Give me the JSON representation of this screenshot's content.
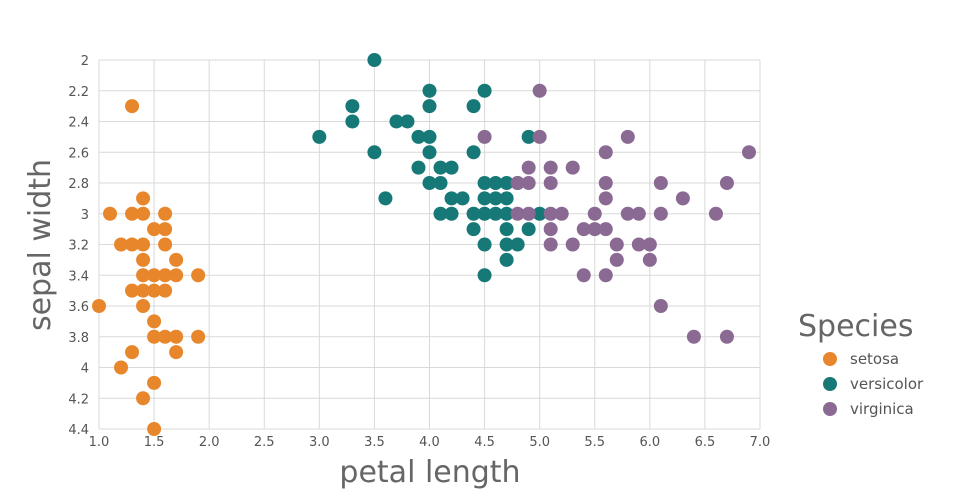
{
  "chart_data": {
    "type": "scatter",
    "title": "",
    "xlabel": "petal length",
    "ylabel": "sepal width",
    "xlim": [
      1.0,
      7.0
    ],
    "ylim": [
      2.0,
      4.4
    ],
    "y_inverted": true,
    "grid": true,
    "x_ticks": [
      "1.0",
      "1.5",
      "2.0",
      "2.5",
      "3.0",
      "3.5",
      "4.0",
      "4.5",
      "5.0",
      "5.5",
      "6.0",
      "6.5",
      "7.0"
    ],
    "y_ticks": [
      "2",
      "2.2",
      "2.4",
      "2.6",
      "2.8",
      "3",
      "3.2",
      "3.4",
      "3.6",
      "3.8",
      "4",
      "4.2",
      "4.4"
    ],
    "legend": {
      "title": "Species",
      "placement": "right"
    },
    "series": [
      {
        "name": "setosa",
        "color": "#e8862b",
        "points": [
          [
            1.3,
            2.3
          ],
          [
            1.1,
            3.0
          ],
          [
            1.3,
            3.0
          ],
          [
            1.4,
            3.0
          ],
          [
            1.6,
            3.0
          ],
          [
            1.4,
            2.9
          ],
          [
            1.2,
            3.2
          ],
          [
            1.3,
            3.2
          ],
          [
            1.4,
            3.2
          ],
          [
            1.6,
            3.2
          ],
          [
            1.5,
            3.1
          ],
          [
            1.6,
            3.1
          ],
          [
            1.4,
            3.3
          ],
          [
            1.7,
            3.3
          ],
          [
            1.4,
            3.4
          ],
          [
            1.5,
            3.4
          ],
          [
            1.6,
            3.4
          ],
          [
            1.7,
            3.4
          ],
          [
            1.9,
            3.4
          ],
          [
            1.3,
            3.5
          ],
          [
            1.4,
            3.5
          ],
          [
            1.5,
            3.5
          ],
          [
            1.6,
            3.5
          ],
          [
            1.0,
            3.6
          ],
          [
            1.4,
            3.6
          ],
          [
            1.5,
            3.7
          ],
          [
            1.5,
            3.8
          ],
          [
            1.6,
            3.8
          ],
          [
            1.7,
            3.8
          ],
          [
            1.9,
            3.8
          ],
          [
            1.3,
            3.9
          ],
          [
            1.7,
            3.9
          ],
          [
            1.2,
            4.0
          ],
          [
            1.5,
            4.1
          ],
          [
            1.4,
            4.2
          ],
          [
            1.5,
            4.4
          ]
        ]
      },
      {
        "name": "versicolor",
        "color": "#177878",
        "points": [
          [
            3.5,
            2.0
          ],
          [
            4.0,
            2.2
          ],
          [
            4.5,
            2.2
          ],
          [
            3.3,
            2.3
          ],
          [
            4.0,
            2.3
          ],
          [
            4.4,
            2.3
          ],
          [
            3.3,
            2.4
          ],
          [
            3.7,
            2.4
          ],
          [
            3.8,
            2.4
          ],
          [
            3.0,
            2.5
          ],
          [
            3.9,
            2.5
          ],
          [
            4.0,
            2.5
          ],
          [
            4.9,
            2.5
          ],
          [
            3.5,
            2.6
          ],
          [
            4.0,
            2.6
          ],
          [
            4.4,
            2.6
          ],
          [
            3.9,
            2.7
          ],
          [
            4.1,
            2.7
          ],
          [
            4.2,
            2.7
          ],
          [
            4.0,
            2.8
          ],
          [
            4.1,
            2.8
          ],
          [
            4.5,
            2.8
          ],
          [
            4.6,
            2.8
          ],
          [
            4.7,
            2.8
          ],
          [
            4.8,
            2.8
          ],
          [
            3.6,
            2.9
          ],
          [
            4.2,
            2.9
          ],
          [
            4.3,
            2.9
          ],
          [
            4.5,
            2.9
          ],
          [
            4.6,
            2.9
          ],
          [
            4.7,
            2.9
          ],
          [
            4.1,
            3.0
          ],
          [
            4.2,
            3.0
          ],
          [
            4.4,
            3.0
          ],
          [
            4.5,
            3.0
          ],
          [
            4.6,
            3.0
          ],
          [
            4.7,
            3.0
          ],
          [
            5.0,
            3.0
          ],
          [
            4.4,
            3.1
          ],
          [
            4.7,
            3.1
          ],
          [
            4.9,
            3.1
          ],
          [
            4.5,
            3.2
          ],
          [
            4.7,
            3.2
          ],
          [
            4.8,
            3.2
          ],
          [
            4.7,
            3.3
          ],
          [
            4.5,
            3.4
          ]
        ]
      },
      {
        "name": "virginica",
        "color": "#8a6a93",
        "points": [
          [
            5.0,
            2.2
          ],
          [
            4.5,
            2.5
          ],
          [
            5.0,
            2.5
          ],
          [
            5.8,
            2.5
          ],
          [
            5.6,
            2.6
          ],
          [
            6.9,
            2.6
          ],
          [
            4.9,
            2.7
          ],
          [
            5.1,
            2.7
          ],
          [
            5.3,
            2.7
          ],
          [
            4.8,
            2.8
          ],
          [
            4.9,
            2.8
          ],
          [
            5.1,
            2.8
          ],
          [
            5.6,
            2.8
          ],
          [
            6.1,
            2.8
          ],
          [
            6.7,
            2.8
          ],
          [
            5.6,
            2.9
          ],
          [
            6.3,
            2.9
          ],
          [
            4.8,
            3.0
          ],
          [
            4.9,
            3.0
          ],
          [
            5.1,
            3.0
          ],
          [
            5.2,
            3.0
          ],
          [
            5.5,
            3.0
          ],
          [
            5.8,
            3.0
          ],
          [
            5.9,
            3.0
          ],
          [
            6.1,
            3.0
          ],
          [
            6.6,
            3.0
          ],
          [
            5.1,
            3.1
          ],
          [
            5.4,
            3.1
          ],
          [
            5.5,
            3.1
          ],
          [
            5.6,
            3.1
          ],
          [
            5.1,
            3.2
          ],
          [
            5.3,
            3.2
          ],
          [
            5.7,
            3.2
          ],
          [
            5.9,
            3.2
          ],
          [
            6.0,
            3.2
          ],
          [
            5.7,
            3.3
          ],
          [
            6.0,
            3.3
          ],
          [
            5.4,
            3.4
          ],
          [
            5.6,
            3.4
          ],
          [
            6.1,
            3.6
          ],
          [
            6.4,
            3.8
          ],
          [
            6.7,
            3.8
          ]
        ]
      }
    ]
  }
}
